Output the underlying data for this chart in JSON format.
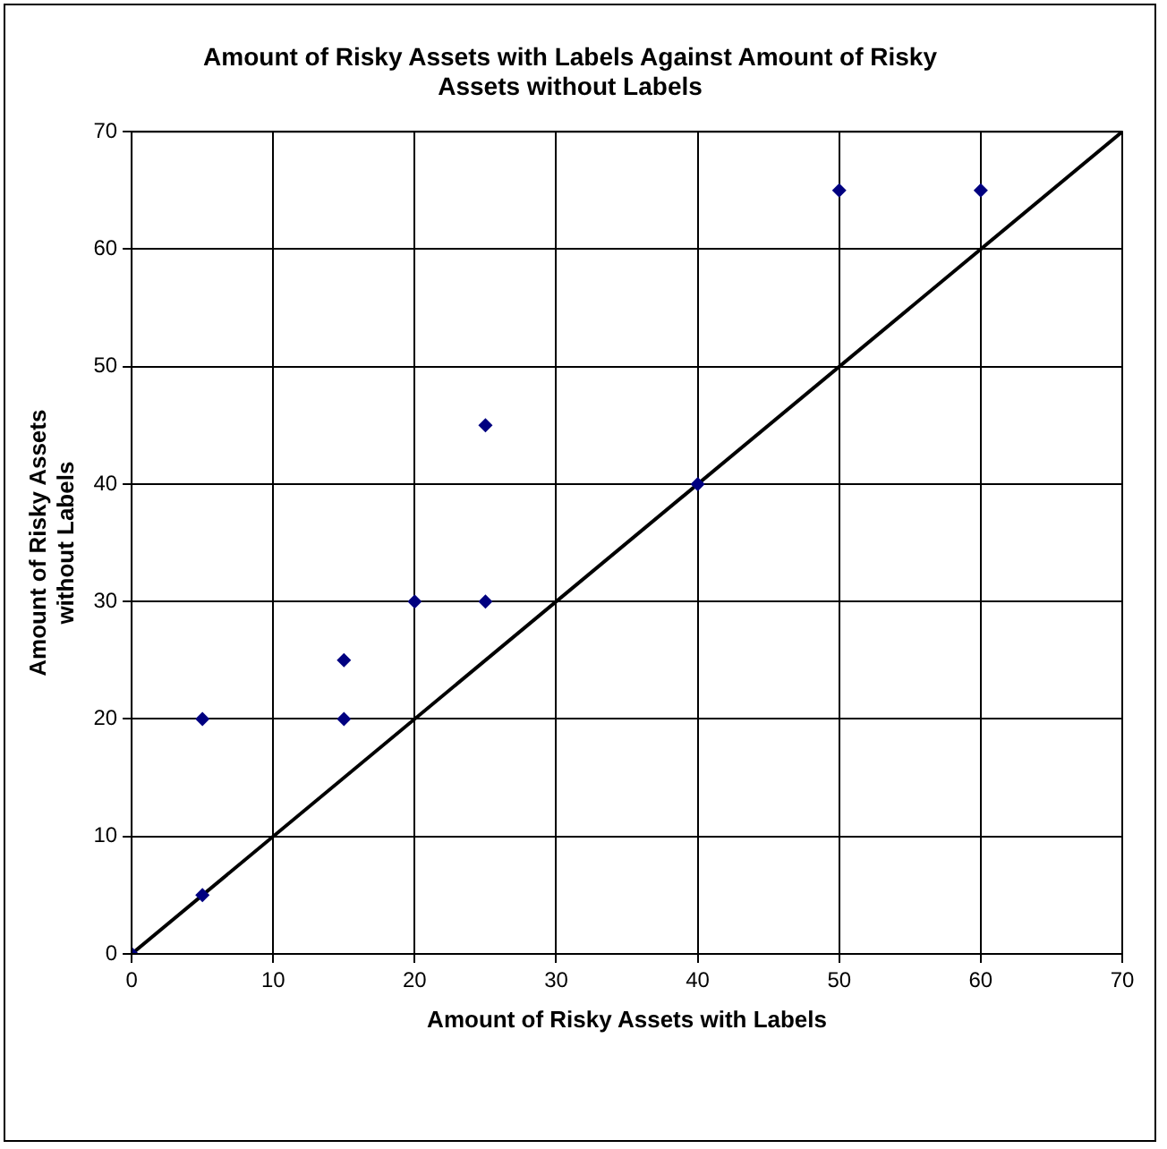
{
  "chart_data": {
    "type": "scatter",
    "title": "Amount of Risky Assets with Labels Against Amount of Risky Assets without Labels",
    "xlabel": "Amount of Risky Assets with Labels",
    "ylabel": "Amount of Risky Assets without Labels",
    "series": [
      {
        "type": "scatter",
        "color": "#000080",
        "marker": "diamond",
        "x": [
          0,
          5,
          5,
          15,
          15,
          20,
          25,
          25,
          40,
          50,
          60
        ],
        "values": [
          0,
          5,
          20,
          20,
          25,
          30,
          30,
          45,
          40,
          65,
          65
        ]
      },
      {
        "type": "line",
        "color": "#000000",
        "marker": "none",
        "line_style": "solid",
        "x": [
          0,
          70
        ],
        "values": [
          0,
          70
        ]
      }
    ],
    "xlim": [
      0,
      70
    ],
    "xticks": [
      0,
      10,
      20,
      30,
      40,
      50,
      60,
      70
    ],
    "ylim": [
      0,
      70
    ],
    "yticks": [
      0,
      10,
      20,
      30,
      40,
      50,
      60,
      70
    ],
    "grid": true,
    "legend": false
  }
}
